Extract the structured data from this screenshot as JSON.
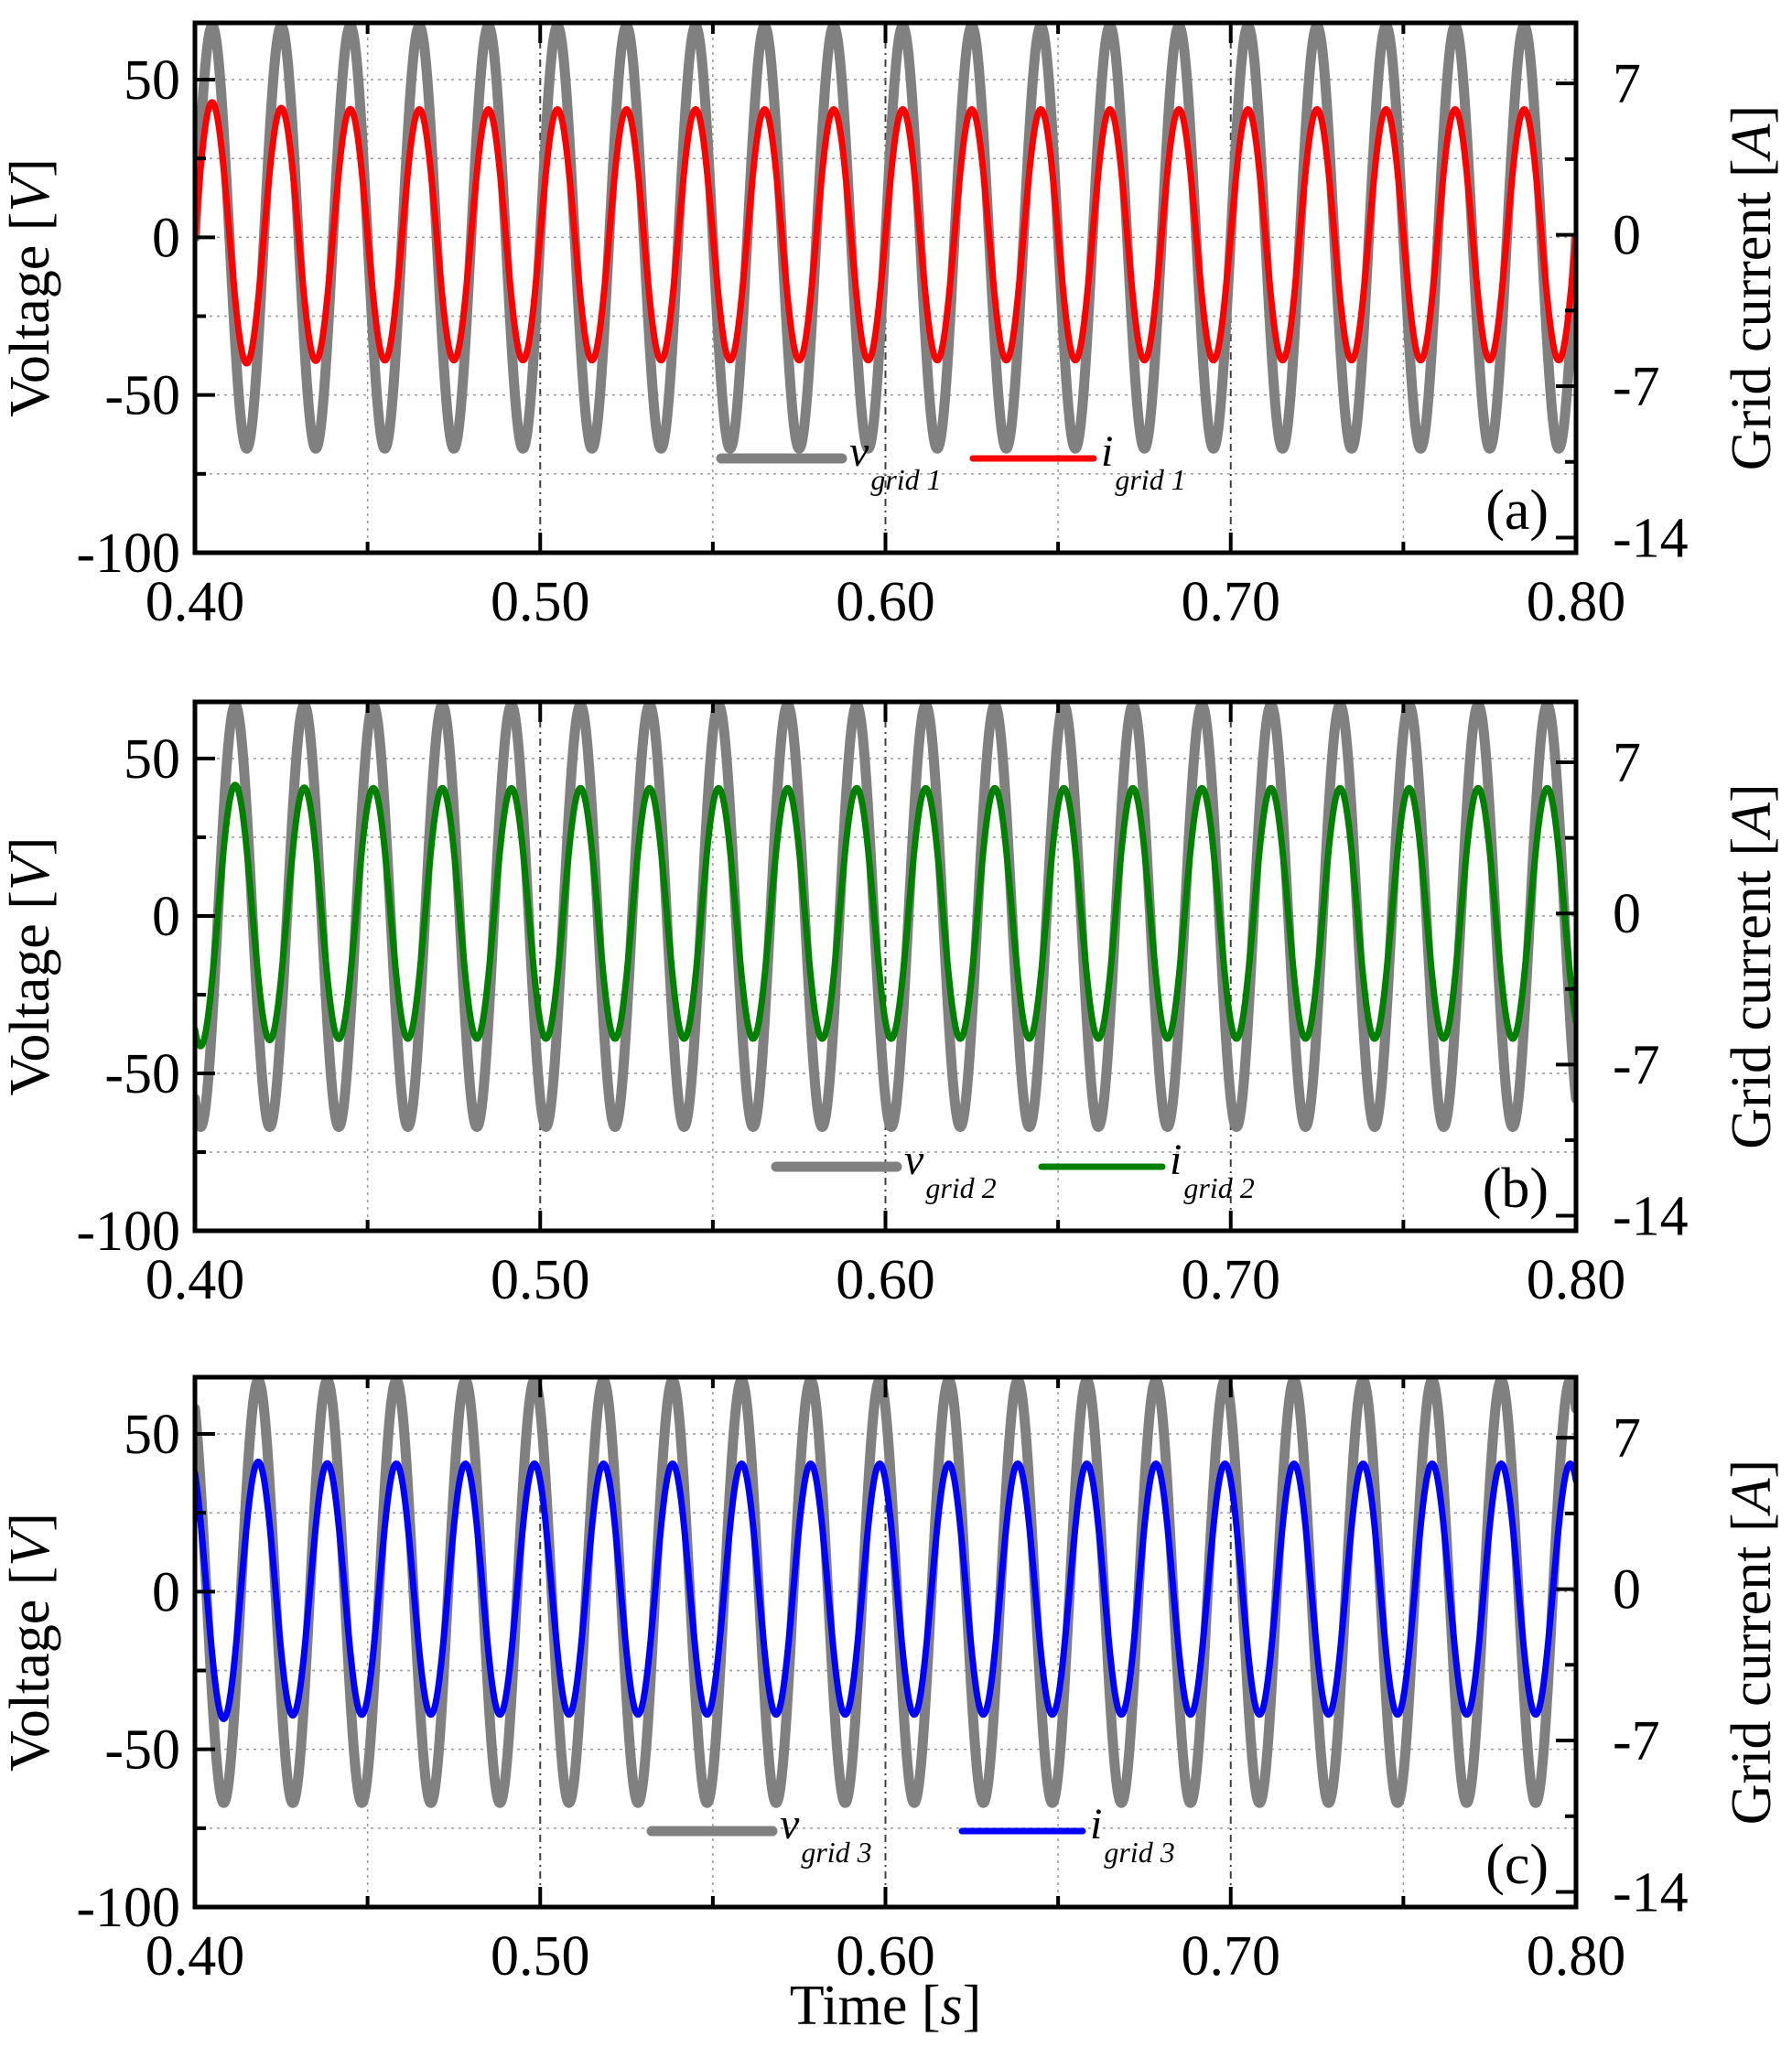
{
  "chart_data": [
    {
      "type": "line",
      "panel_label": "(a)",
      "xlabel": "",
      "xlim": [
        0.4,
        0.8
      ],
      "x_ticks": [
        "0.40",
        "0.50",
        "0.60",
        "0.70",
        "0.80"
      ],
      "ylabel_left": {
        "text": "Voltage [",
        "unit": "V",
        "close": "]"
      },
      "ylim_left": [
        -100,
        68
      ],
      "y_ticks_left": [
        "50",
        "0",
        "-50",
        "-100"
      ],
      "ylabel_right": {
        "text": "Grid current [",
        "unit": "A",
        "close": "]"
      },
      "ylim_right": [
        -14.7,
        9.8
      ],
      "y_ticks_right": [
        "7",
        "0",
        "-7",
        "-14"
      ],
      "series": [
        {
          "name": "v",
          "subscript": "grid 1",
          "axis": "left",
          "amplitude": 67,
          "frequency_hz": 50,
          "phase_deg": 0,
          "color": "#808080"
        },
        {
          "name": "i",
          "subscript": "grid 1",
          "axis": "right",
          "amplitude": 5.8,
          "frequency_hz": 50,
          "phase_deg": 0,
          "start_peak": 6.3,
          "color": "#ff0000"
        }
      ]
    },
    {
      "type": "line",
      "panel_label": "(b)",
      "xlabel": "",
      "xlim": [
        0.4,
        0.8
      ],
      "x_ticks": [
        "0.40",
        "0.50",
        "0.60",
        "0.70",
        "0.80"
      ],
      "ylabel_left": {
        "text": "Voltage [",
        "unit": "V",
        "close": "]"
      },
      "ylim_left": [
        -100,
        68
      ],
      "y_ticks_left": [
        "50",
        "0",
        "-50",
        "-100"
      ],
      "ylabel_right": {
        "text": "Grid current [",
        "unit": "A",
        "close": "]"
      },
      "ylim_right": [
        -14.7,
        9.8
      ],
      "y_ticks_right": [
        "7",
        "0",
        "-7",
        "-14"
      ],
      "series": [
        {
          "name": "v",
          "subscript": "grid 2",
          "axis": "left",
          "amplitude": 67,
          "frequency_hz": 50,
          "phase_deg": -120,
          "color": "#808080"
        },
        {
          "name": "i",
          "subscript": "grid 2",
          "axis": "right",
          "amplitude": 5.8,
          "frequency_hz": 50,
          "phase_deg": -120,
          "start_peak": 6.2,
          "color": "#008000"
        }
      ]
    },
    {
      "type": "line",
      "panel_label": "(c)",
      "xlabel": {
        "text": "Time [",
        "unit": "s",
        "close": "]"
      },
      "xlim": [
        0.4,
        0.8
      ],
      "x_ticks": [
        "0.40",
        "0.50",
        "0.60",
        "0.70",
        "0.80"
      ],
      "ylabel_left": {
        "text": "Voltage [",
        "unit": "V",
        "close": "]"
      },
      "ylim_left": [
        -100,
        68
      ],
      "y_ticks_left": [
        "50",
        "0",
        "-50",
        "-100"
      ],
      "ylabel_right": {
        "text": "Grid current [",
        "unit": "A",
        "close": "]"
      },
      "ylim_right": [
        -14.7,
        9.8
      ],
      "y_ticks_right": [
        "7",
        "0",
        "-7",
        "-14"
      ],
      "series": [
        {
          "name": "v",
          "subscript": "grid 3",
          "axis": "left",
          "amplitude": 67,
          "frequency_hz": 50,
          "phase_deg": 120,
          "color": "#808080"
        },
        {
          "name": "i",
          "subscript": "grid 3",
          "axis": "right",
          "amplitude": 5.8,
          "frequency_hz": 50,
          "phase_deg": 120,
          "start_peak": 6.2,
          "color": "#0000ff"
        }
      ]
    }
  ]
}
